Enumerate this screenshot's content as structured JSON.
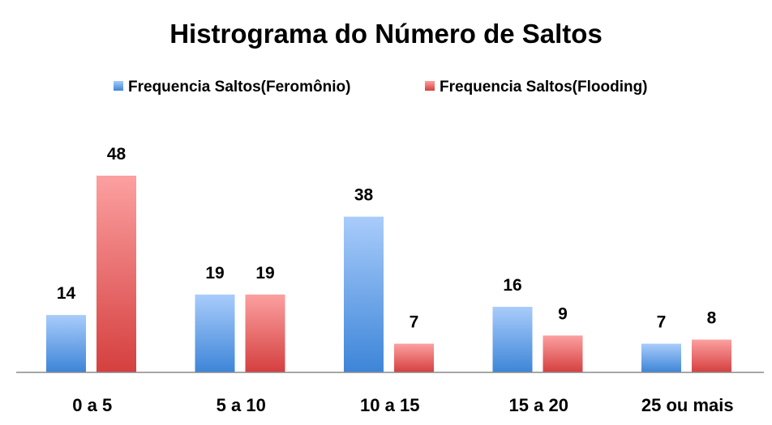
{
  "chart_data": {
    "type": "bar",
    "title": "Histrograma do Número de Saltos",
    "xlabel": "",
    "ylabel": "",
    "categories": [
      "0 a 5",
      "5 a 10",
      "10 a 15",
      "15 a 20",
      "25 ou mais"
    ],
    "series": [
      {
        "name": "Frequencia Saltos(Feromônio)",
        "values": [
          14,
          19,
          38,
          16,
          7
        ],
        "color_top": "#a9ccfb",
        "color_bottom": "#3d85d8"
      },
      {
        "name": "Frequencia Saltos(Flooding)",
        "values": [
          48,
          19,
          7,
          9,
          8
        ],
        "color_top": "#fca0a0",
        "color_bottom": "#d53f3f"
      }
    ],
    "ylim": [
      0,
      48
    ],
    "grid": false,
    "legend_position": "top",
    "axis_color": "#898989"
  }
}
